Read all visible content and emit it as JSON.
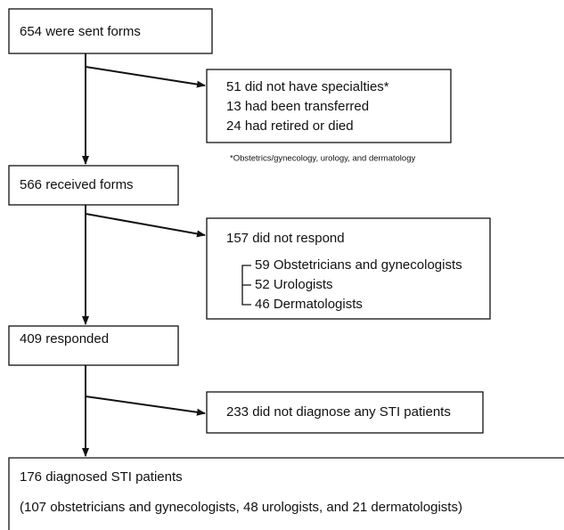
{
  "nodes": [
    {
      "label": "654 were sent forms"
    },
    {
      "lines": [
        "51 did not have specialties*",
        "13 had been transferred",
        "24 had retired or died"
      ]
    },
    {
      "label": "566 received forms"
    },
    {
      "label": "157 did not respond",
      "sub": [
        "59 Obstetricians and gynecologists",
        "52 Urologists",
        "46 Dermatologists"
      ]
    },
    {
      "label": "409 responded"
    },
    {
      "label": "233 did not diagnose any STI patients"
    },
    {
      "lines": [
        "176 diagnosed STI patients",
        "(107 obstetricians and gynecologists, 48 urologists, and 21 dermatologists)"
      ]
    }
  ],
  "footnote": "*Obstetrics/gynecology, urology, and dermatology"
}
